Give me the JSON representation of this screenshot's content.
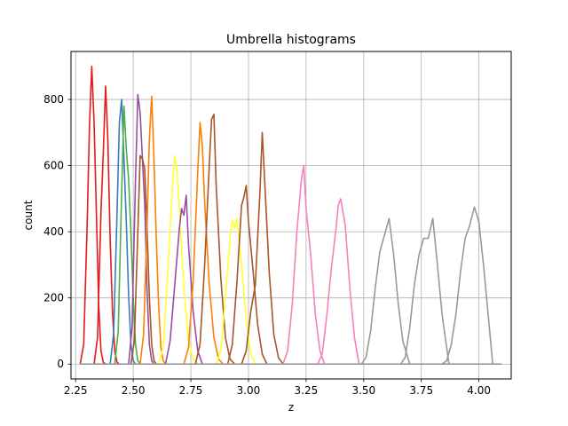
{
  "chart_data": {
    "type": "line",
    "title": "Umbrella histograms",
    "xlabel": "z",
    "ylabel": "count",
    "xlim": [
      2.23,
      4.14
    ],
    "ylim": [
      -45,
      945
    ],
    "xticks": [
      2.25,
      2.5,
      2.75,
      3.0,
      3.25,
      3.5,
      3.75,
      4.0
    ],
    "xtick_labels": [
      "2.25",
      "2.50",
      "2.75",
      "3.00",
      "3.25",
      "3.50",
      "3.75",
      "4.00"
    ],
    "yticks": [
      0,
      200,
      400,
      600,
      800
    ],
    "ytick_labels": [
      "0",
      "200",
      "400",
      "600",
      "800"
    ],
    "grid": true,
    "series": [
      {
        "color": "#e41a1c",
        "x": [
          2.27,
          2.285,
          2.3,
          2.31,
          2.32,
          2.33,
          2.34,
          2.35,
          2.36,
          2.37,
          2.38
        ],
        "y": [
          0,
          60,
          420,
          720,
          900,
          730,
          460,
          180,
          40,
          5,
          0
        ]
      },
      {
        "color": "#e41a1c",
        "x": [
          2.33,
          2.345,
          2.36,
          2.37,
          2.38,
          2.39,
          2.4,
          2.41,
          2.42,
          2.43,
          2.44
        ],
        "y": [
          0,
          80,
          460,
          640,
          840,
          680,
          380,
          160,
          40,
          5,
          0
        ]
      },
      {
        "color": "#377eb8",
        "x": [
          2.4,
          2.415,
          2.43,
          2.44,
          2.45,
          2.46,
          2.47,
          2.48,
          2.49,
          2.5,
          2.51
        ],
        "y": [
          0,
          90,
          460,
          730,
          800,
          620,
          430,
          210,
          60,
          10,
          0
        ]
      },
      {
        "color": "#4daf4a",
        "x": [
          2.42,
          2.435,
          2.45,
          2.46,
          2.47,
          2.48,
          2.49,
          2.5,
          2.51,
          2.52,
          2.53
        ],
        "y": [
          0,
          100,
          520,
          780,
          650,
          560,
          400,
          200,
          60,
          10,
          0
        ]
      },
      {
        "color": "#984ea3",
        "x": [
          2.48,
          2.495,
          2.51,
          2.52,
          2.53,
          2.54,
          2.55,
          2.56,
          2.57,
          2.58,
          2.59
        ],
        "y": [
          0,
          110,
          560,
          815,
          760,
          620,
          480,
          220,
          60,
          10,
          0
        ]
      },
      {
        "color": "#a65628",
        "x": [
          2.49,
          2.505,
          2.52,
          2.53,
          2.54,
          2.55,
          2.56,
          2.57,
          2.58,
          2.59,
          2.6
        ],
        "y": [
          0,
          70,
          400,
          630,
          620,
          590,
          410,
          200,
          60,
          10,
          0
        ]
      },
      {
        "color": "#ff7f00",
        "x": [
          2.53,
          2.545,
          2.56,
          2.57,
          2.58,
          2.59,
          2.6,
          2.61,
          2.62,
          2.63,
          2.64
        ],
        "y": [
          0,
          90,
          420,
          680,
          810,
          620,
          380,
          180,
          50,
          10,
          0
        ]
      },
      {
        "color": "#ffff33",
        "x": [
          2.61,
          2.63,
          2.65,
          2.67,
          2.68,
          2.69,
          2.7,
          2.72,
          2.74,
          2.76,
          2.78
        ],
        "y": [
          0,
          50,
          280,
          530,
          630,
          580,
          470,
          230,
          70,
          15,
          0
        ]
      },
      {
        "color": "#984ea3",
        "x": [
          2.64,
          2.66,
          2.68,
          2.7,
          2.71,
          2.72,
          2.73,
          2.74,
          2.76,
          2.78,
          2.8
        ],
        "y": [
          0,
          70,
          240,
          410,
          470,
          450,
          510,
          360,
          160,
          40,
          0
        ]
      },
      {
        "color": "#ff7f00",
        "x": [
          2.72,
          2.74,
          2.76,
          2.78,
          2.79,
          2.8,
          2.81,
          2.83,
          2.85,
          2.87,
          2.89
        ],
        "y": [
          0,
          50,
          250,
          580,
          730,
          660,
          490,
          240,
          80,
          15,
          0
        ]
      },
      {
        "color": "#a65628",
        "x": [
          2.77,
          2.79,
          2.81,
          2.83,
          2.84,
          2.85,
          2.86,
          2.88,
          2.9,
          2.92,
          2.94
        ],
        "y": [
          0,
          60,
          300,
          600,
          740,
          755,
          540,
          260,
          80,
          15,
          0
        ]
      },
      {
        "color": "#ffff33",
        "x": [
          2.86,
          2.88,
          2.9,
          2.92,
          2.93,
          2.94,
          2.95,
          2.97,
          2.99,
          3.01,
          3.03
        ],
        "y": [
          0,
          40,
          200,
          380,
          435,
          410,
          440,
          300,
          130,
          30,
          0
        ]
      },
      {
        "color": "#a65628",
        "x": [
          2.91,
          2.93,
          2.95,
          2.97,
          2.98,
          2.99,
          3.0,
          3.02,
          3.04,
          3.06,
          3.08
        ],
        "y": [
          0,
          60,
          250,
          480,
          505,
          540,
          430,
          280,
          120,
          30,
          0
        ]
      },
      {
        "color": "#a65628",
        "x": [
          2.97,
          2.99,
          3.01,
          3.03,
          3.05,
          3.06,
          3.07,
          3.09,
          3.11,
          3.13,
          3.15
        ],
        "y": [
          0,
          40,
          160,
          240,
          520,
          700,
          560,
          280,
          90,
          20,
          0
        ]
      },
      {
        "color": "#f781bf",
        "x": [
          3.15,
          3.17,
          3.19,
          3.21,
          3.23,
          3.24,
          3.25,
          3.27,
          3.29,
          3.31,
          3.33
        ],
        "y": [
          0,
          40,
          180,
          400,
          560,
          600,
          470,
          330,
          150,
          40,
          0
        ]
      },
      {
        "color": "#f781bf",
        "x": [
          3.3,
          3.32,
          3.34,
          3.36,
          3.38,
          3.39,
          3.4,
          3.42,
          3.44,
          3.46,
          3.48
        ],
        "y": [
          0,
          30,
          150,
          290,
          410,
          480,
          500,
          420,
          230,
          80,
          0
        ]
      },
      {
        "color": "#999999",
        "x": [
          3.49,
          3.51,
          3.53,
          3.55,
          3.57,
          3.59,
          3.61,
          3.63,
          3.65,
          3.67,
          3.7
        ],
        "y": [
          0,
          20,
          100,
          230,
          340,
          390,
          440,
          330,
          180,
          70,
          0
        ]
      },
      {
        "color": "#999999",
        "x": [
          3.66,
          3.68,
          3.7,
          3.72,
          3.74,
          3.76,
          3.78,
          3.8,
          3.82,
          3.84,
          3.87
        ],
        "y": [
          0,
          20,
          110,
          240,
          330,
          380,
          380,
          440,
          300,
          150,
          0
        ]
      },
      {
        "color": "#999999",
        "x": [
          3.84,
          3.86,
          3.88,
          3.9,
          3.92,
          3.94,
          3.96,
          3.98,
          4.0,
          4.02,
          4.06
        ],
        "y": [
          0,
          10,
          60,
          150,
          280,
          380,
          420,
          475,
          430,
          300,
          0
        ]
      },
      {
        "color": "#999999",
        "x": [
          2.27,
          4.1
        ],
        "y": [
          0,
          0
        ]
      }
    ]
  }
}
